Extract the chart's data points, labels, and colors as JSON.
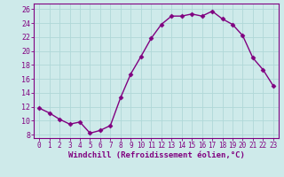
{
  "x": [
    0,
    1,
    2,
    3,
    4,
    5,
    6,
    7,
    8,
    9,
    10,
    11,
    12,
    13,
    14,
    15,
    16,
    17,
    18,
    19,
    20,
    21,
    22,
    23
  ],
  "y": [
    11.8,
    11.1,
    10.2,
    9.5,
    9.8,
    8.2,
    8.6,
    9.3,
    13.3,
    16.7,
    19.2,
    21.8,
    23.8,
    25.0,
    25.0,
    25.3,
    25.0,
    25.7,
    24.6,
    23.8,
    22.2,
    19.0,
    17.3,
    15.0
  ],
  "line_color": "#800080",
  "marker": "D",
  "marker_size": 2.5,
  "linewidth": 1.0,
  "bg_color": "#ceeaea",
  "grid_color": "#b0d8d8",
  "xlabel": "Windchill (Refroidissement éolien,°C)",
  "xlabel_fontsize": 6.5,
  "xlabel_color": "#800080",
  "ylabel_ticks": [
    8,
    10,
    12,
    14,
    16,
    18,
    20,
    22,
    24,
    26
  ],
  "xticks": [
    0,
    1,
    2,
    3,
    4,
    5,
    6,
    7,
    8,
    9,
    10,
    11,
    12,
    13,
    14,
    15,
    16,
    17,
    18,
    19,
    20,
    21,
    22,
    23
  ],
  "ylim": [
    7.5,
    26.8
  ],
  "xlim": [
    -0.5,
    23.5
  ],
  "tick_fontsize": 5.5,
  "ytick_fontsize": 6.0
}
